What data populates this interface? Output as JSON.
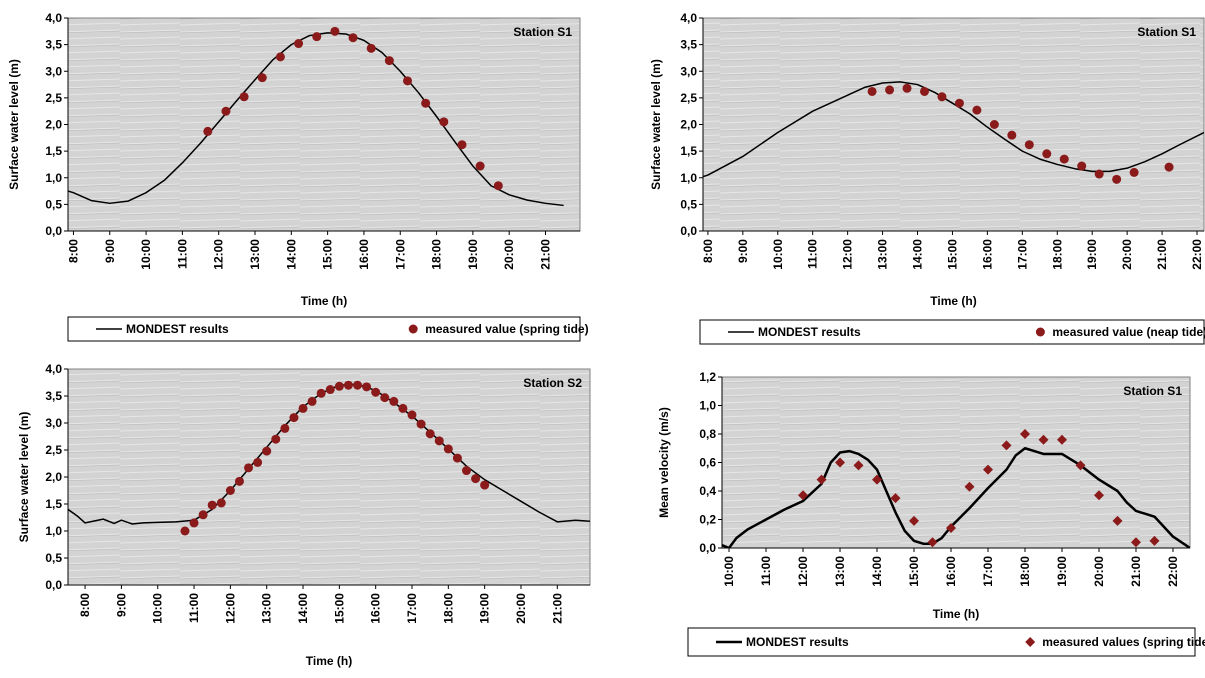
{
  "chart_data": [
    {
      "type": "line",
      "annotation": "Station S1",
      "x_label": "Time (h)",
      "y_label": "Surface water level (m)",
      "legend": "bottom",
      "xlim": [
        7.85,
        21.95
      ],
      "ylim": [
        0,
        4
      ],
      "xticks": [
        {
          "value": 8,
          "label": "8:00"
        },
        {
          "value": 9,
          "label": "9:00"
        },
        {
          "value": 10,
          "label": "10:00"
        },
        {
          "value": 11,
          "label": "11:00"
        },
        {
          "value": 12,
          "label": "12:00"
        },
        {
          "value": 13,
          "label": "13:00"
        },
        {
          "value": 14,
          "label": "14:00"
        },
        {
          "value": 15,
          "label": "15:00"
        },
        {
          "value": 16,
          "label": "16:00"
        },
        {
          "value": 17,
          "label": "17:00"
        },
        {
          "value": 18,
          "label": "18:00"
        },
        {
          "value": 19,
          "label": "19:00"
        },
        {
          "value": 20,
          "label": "20:00"
        },
        {
          "value": 21,
          "label": "21:00"
        }
      ],
      "yticks": [
        {
          "value": 0,
          "label": "0,0"
        },
        {
          "value": 0.5,
          "label": "0,5"
        },
        {
          "value": 1,
          "label": "1,0"
        },
        {
          "value": 1.5,
          "label": "1,5"
        },
        {
          "value": 2,
          "label": "2,0"
        },
        {
          "value": 2.5,
          "label": "2,5"
        },
        {
          "value": 3,
          "label": "3,0"
        },
        {
          "value": 3.5,
          "label": "3,5"
        },
        {
          "value": 4,
          "label": "4,0"
        }
      ],
      "series": [
        {
          "name": "MONDEST results",
          "color": "#000000",
          "line_width": 1.5,
          "x": [
            7.85,
            8,
            8.5,
            9,
            9.5,
            10,
            10.5,
            11,
            11.5,
            12,
            12.5,
            13,
            13.5,
            14,
            14.5,
            15,
            15.5,
            16,
            16.5,
            17,
            17.5,
            18,
            18.5,
            19,
            19.5,
            20,
            20.5,
            21,
            21.5
          ],
          "values": [
            0.75,
            0.72,
            0.57,
            0.52,
            0.56,
            0.72,
            0.95,
            1.28,
            1.65,
            2.05,
            2.45,
            2.84,
            3.22,
            3.5,
            3.67,
            3.72,
            3.7,
            3.58,
            3.35,
            3.0,
            2.6,
            2.15,
            1.68,
            1.22,
            0.85,
            0.68,
            0.58,
            0.52,
            0.48
          ]
        },
        {
          "name": "measured value (spring tide)",
          "color": "#8b1a1a",
          "marker": "circle",
          "x": [
            11.7,
            12.2,
            12.7,
            13.2,
            13.7,
            14.2,
            14.7,
            15.2,
            15.7,
            16.2,
            16.7,
            17.2,
            17.7,
            18.2,
            18.7,
            19.2,
            19.7
          ],
          "values": [
            1.87,
            2.25,
            2.52,
            2.88,
            3.27,
            3.52,
            3.65,
            3.75,
            3.63,
            3.43,
            3.2,
            2.82,
            2.4,
            2.05,
            1.62,
            1.22,
            0.85
          ]
        }
      ]
    },
    {
      "type": "line",
      "annotation": "Station S1",
      "x_label": "Time (h)",
      "y_label": "Surface water level (m)",
      "legend": "bottom",
      "xlim": [
        7.86,
        22.2
      ],
      "ylim": [
        0,
        4
      ],
      "xticks": [
        {
          "value": 8,
          "label": "8:00"
        },
        {
          "value": 9,
          "label": "9:00"
        },
        {
          "value": 10,
          "label": "10:00"
        },
        {
          "value": 11,
          "label": "11:00"
        },
        {
          "value": 12,
          "label": "12:00"
        },
        {
          "value": 13,
          "label": "13:00"
        },
        {
          "value": 14,
          "label": "14:00"
        },
        {
          "value": 15,
          "label": "15:00"
        },
        {
          "value": 16,
          "label": "16:00"
        },
        {
          "value": 17,
          "label": "17:00"
        },
        {
          "value": 18,
          "label": "18:00"
        },
        {
          "value": 19,
          "label": "19:00"
        },
        {
          "value": 20,
          "label": "20:00"
        },
        {
          "value": 21,
          "label": "21:00"
        },
        {
          "value": 22,
          "label": "22:00"
        }
      ],
      "yticks": [
        {
          "value": 0,
          "label": "0,0"
        },
        {
          "value": 0.5,
          "label": "0,5"
        },
        {
          "value": 1,
          "label": "1,0"
        },
        {
          "value": 1.5,
          "label": "1,5"
        },
        {
          "value": 2,
          "label": "2,0"
        },
        {
          "value": 2.5,
          "label": "2,5"
        },
        {
          "value": 3,
          "label": "3,0"
        },
        {
          "value": 3.5,
          "label": "3,5"
        },
        {
          "value": 4,
          "label": "4,0"
        }
      ],
      "series": [
        {
          "name": "MONDEST results",
          "color": "#000000",
          "line_width": 1.5,
          "x": [
            7.86,
            8,
            9,
            10,
            11,
            12,
            12.5,
            13,
            13.5,
            14,
            14.5,
            15,
            15.5,
            16,
            16.5,
            17,
            17.5,
            18,
            18.5,
            19,
            19.5,
            20,
            20.5,
            21,
            21.5,
            22.2
          ],
          "values": [
            1.02,
            1.05,
            1.4,
            1.85,
            2.25,
            2.55,
            2.7,
            2.78,
            2.8,
            2.75,
            2.6,
            2.4,
            2.2,
            1.95,
            1.72,
            1.5,
            1.35,
            1.25,
            1.17,
            1.12,
            1.12,
            1.18,
            1.3,
            1.45,
            1.62,
            1.85
          ]
        },
        {
          "name": "measured value (neap tide)",
          "color": "#8b1a1a",
          "marker": "circle",
          "x": [
            12.7,
            13.2,
            13.7,
            14.2,
            14.7,
            15.2,
            15.7,
            16.2,
            16.7,
            17.2,
            17.7,
            18.2,
            18.7,
            19.2,
            19.7,
            20.2,
            21.2
          ],
          "values": [
            2.62,
            2.65,
            2.68,
            2.62,
            2.52,
            2.4,
            2.27,
            2.0,
            1.8,
            1.62,
            1.45,
            1.35,
            1.22,
            1.07,
            0.97,
            1.1,
            1.2
          ]
        }
      ]
    },
    {
      "type": "line",
      "annotation": "Station S2",
      "x_label": "Time (h)",
      "y_label": "Surface water level (m)",
      "xlim": [
        7.53,
        21.9
      ],
      "ylim": [
        0,
        4
      ],
      "xticks": [
        {
          "value": 8,
          "label": "8:00"
        },
        {
          "value": 9,
          "label": "9:00"
        },
        {
          "value": 10,
          "label": "10:00"
        },
        {
          "value": 11,
          "label": "11:00"
        },
        {
          "value": 12,
          "label": "12:00"
        },
        {
          "value": 13,
          "label": "13:00"
        },
        {
          "value": 14,
          "label": "14:00"
        },
        {
          "value": 15,
          "label": "15:00"
        },
        {
          "value": 16,
          "label": "16:00"
        },
        {
          "value": 17,
          "label": "17:00"
        },
        {
          "value": 18,
          "label": "18:00"
        },
        {
          "value": 19,
          "label": "19:00"
        },
        {
          "value": 20,
          "label": "20:00"
        },
        {
          "value": 21,
          "label": "21:00"
        }
      ],
      "yticks": [
        {
          "value": 0,
          "label": "0,0"
        },
        {
          "value": 0.5,
          "label": "0,5"
        },
        {
          "value": 1,
          "label": "1,0"
        },
        {
          "value": 1.5,
          "label": "1,5"
        },
        {
          "value": 2,
          "label": "2,0"
        },
        {
          "value": 2.5,
          "label": "2,5"
        },
        {
          "value": 3,
          "label": "3,0"
        },
        {
          "value": 3.5,
          "label": "3,5"
        },
        {
          "value": 4,
          "label": "4,0"
        }
      ],
      "series": [
        {
          "color": "#000000",
          "line_width": 1.5,
          "x": [
            7.53,
            7.8,
            8,
            8.5,
            8.8,
            9,
            9.3,
            9.6,
            10,
            10.5,
            11,
            11.5,
            12,
            12.5,
            13,
            13.5,
            14,
            14.5,
            15,
            15.5,
            16,
            16.5,
            17,
            17.5,
            18,
            18.5,
            19,
            19.5,
            20,
            20.5,
            21,
            21.5,
            21.9
          ],
          "values": [
            1.4,
            1.27,
            1.15,
            1.22,
            1.14,
            1.2,
            1.13,
            1.15,
            1.16,
            1.17,
            1.2,
            1.4,
            1.75,
            2.15,
            2.55,
            2.95,
            3.3,
            3.55,
            3.7,
            3.72,
            3.6,
            3.38,
            3.13,
            2.83,
            2.52,
            2.2,
            1.95,
            1.75,
            1.55,
            1.35,
            1.17,
            1.2,
            1.18
          ]
        },
        {
          "color": "#8b1a1a",
          "marker": "circle",
          "x": [
            10.75,
            11,
            11.25,
            11.5,
            11.75,
            12,
            12.25,
            12.5,
            12.75,
            13,
            13.25,
            13.5,
            13.75,
            14,
            14.25,
            14.5,
            14.75,
            15,
            15.25,
            15.5,
            15.75,
            16,
            16.25,
            16.5,
            16.75,
            17,
            17.25,
            17.5,
            17.75,
            18,
            18.25,
            18.5,
            18.75,
            19
          ],
          "values": [
            1.0,
            1.15,
            1.3,
            1.48,
            1.52,
            1.75,
            1.92,
            2.17,
            2.27,
            2.48,
            2.7,
            2.9,
            3.1,
            3.27,
            3.4,
            3.55,
            3.62,
            3.68,
            3.7,
            3.7,
            3.67,
            3.57,
            3.47,
            3.4,
            3.27,
            3.15,
            2.98,
            2.8,
            2.67,
            2.52,
            2.35,
            2.12,
            1.97,
            1.85
          ]
        }
      ]
    },
    {
      "type": "line",
      "annotation": "Station S1",
      "x_label": "Time (h)",
      "y_label": "Mean velocity (m/s)",
      "legend": "bottom",
      "xlim": [
        9.81,
        22.46
      ],
      "ylim": [
        0,
        1.2
      ],
      "xticks": [
        {
          "value": 10,
          "label": "10:00"
        },
        {
          "value": 11,
          "label": "11:00"
        },
        {
          "value": 12,
          "label": "12:00"
        },
        {
          "value": 13,
          "label": "13:00"
        },
        {
          "value": 14,
          "label": "14:00"
        },
        {
          "value": 15,
          "label": "15:00"
        },
        {
          "value": 16,
          "label": "16:00"
        },
        {
          "value": 17,
          "label": "17:00"
        },
        {
          "value": 18,
          "label": "18:00"
        },
        {
          "value": 19,
          "label": "19:00"
        },
        {
          "value": 20,
          "label": "20:00"
        },
        {
          "value": 21,
          "label": "21:00"
        },
        {
          "value": 22,
          "label": "22:00"
        }
      ],
      "yticks": [
        {
          "value": 0,
          "label": "0,0"
        },
        {
          "value": 0.2,
          "label": "0,2"
        },
        {
          "value": 0.4,
          "label": "0,4"
        },
        {
          "value": 0.6,
          "label": "0,6"
        },
        {
          "value": 0.8,
          "label": "0,8"
        },
        {
          "value": 1,
          "label": "1,0"
        },
        {
          "value": 1.2,
          "label": "1,2"
        }
      ],
      "series": [
        {
          "name": "MONDEST results",
          "color": "#000000",
          "line_width": 2.5,
          "x": [
            9.81,
            10,
            10.2,
            10.5,
            11,
            11.5,
            12,
            12.5,
            12.75,
            13,
            13.25,
            13.5,
            13.75,
            14,
            14.25,
            14.5,
            14.75,
            15,
            15.25,
            15.5,
            15.75,
            16,
            16.5,
            17,
            17.5,
            17.75,
            18,
            18.25,
            18.5,
            19,
            19.5,
            20,
            20.5,
            20.75,
            21,
            21.5,
            22,
            22.46
          ],
          "values": [
            0.02,
            0.0,
            0.07,
            0.13,
            0.2,
            0.27,
            0.33,
            0.45,
            0.6,
            0.67,
            0.68,
            0.66,
            0.62,
            0.55,
            0.4,
            0.25,
            0.12,
            0.05,
            0.03,
            0.03,
            0.07,
            0.15,
            0.28,
            0.42,
            0.55,
            0.65,
            0.7,
            0.68,
            0.66,
            0.66,
            0.58,
            0.48,
            0.4,
            0.32,
            0.26,
            0.22,
            0.08,
            0.0
          ]
        },
        {
          "name": "measured values (spring tide)",
          "color": "#8b1a1a",
          "marker": "diamond",
          "x": [
            12,
            12.5,
            13,
            13.5,
            14,
            14.5,
            15,
            15.5,
            16,
            16.5,
            17,
            17.5,
            18,
            18.5,
            19,
            19.5,
            20,
            20.5,
            21,
            21.5
          ],
          "values": [
            0.37,
            0.48,
            0.6,
            0.58,
            0.48,
            0.35,
            0.19,
            0.04,
            0.14,
            0.43,
            0.55,
            0.72,
            0.8,
            0.76,
            0.76,
            0.58,
            0.37,
            0.19,
            0.04,
            0.05
          ]
        }
      ]
    }
  ]
}
